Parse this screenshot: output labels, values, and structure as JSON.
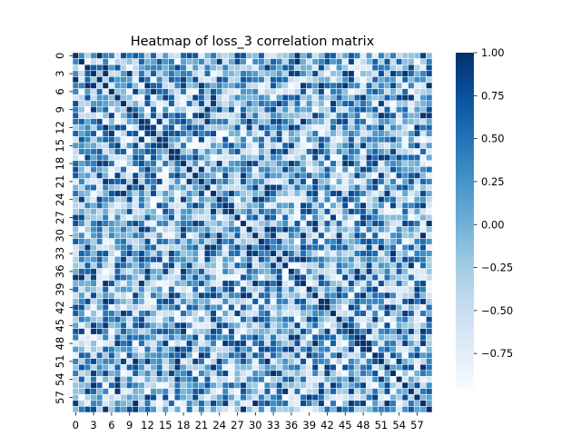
{
  "chart_data": {
    "type": "heatmap",
    "title": "Heatmap of loss_3 correlation matrix",
    "xlabel": "",
    "ylabel": "",
    "rows": 60,
    "cols": 60,
    "x_tick_labels": [
      "0",
      "3",
      "6",
      "9",
      "12",
      "15",
      "18",
      "21",
      "24",
      "27",
      "30",
      "33",
      "36",
      "39",
      "42",
      "45",
      "48",
      "51",
      "54",
      "57"
    ],
    "y_tick_labels": [
      "0",
      "3",
      "6",
      "9",
      "12",
      "15",
      "18",
      "21",
      "24",
      "27",
      "30",
      "33",
      "36",
      "39",
      "42",
      "45",
      "48",
      "51",
      "54",
      "57"
    ],
    "tick_step": 3,
    "colorbar": {
      "min": -0.95,
      "max": 1.0,
      "tick_values": [
        1.0,
        0.75,
        0.5,
        0.25,
        0.0,
        -0.25,
        -0.5,
        -0.75
      ],
      "tick_labels": [
        "1.00",
        "0.75",
        "0.50",
        "0.25",
        "0.00",
        "−0.25",
        "−0.50",
        "−0.75"
      ]
    },
    "colormap": "Blues",
    "colormap_stops": [
      "#f7fbff",
      "#deebf7",
      "#c6dbef",
      "#9ecae1",
      "#6baed6",
      "#4292c6",
      "#2171b5",
      "#08519c",
      "#08306b"
    ],
    "cell_border_color": "#ffffff",
    "grid": false,
    "diagonal_value": 1.0,
    "values_note": "Dense 60x60 matrix of near-random values in [-0.95, 1.0]; diagonal is 1.0. Individual off-diagonal cell values are not legible in the image."
  }
}
